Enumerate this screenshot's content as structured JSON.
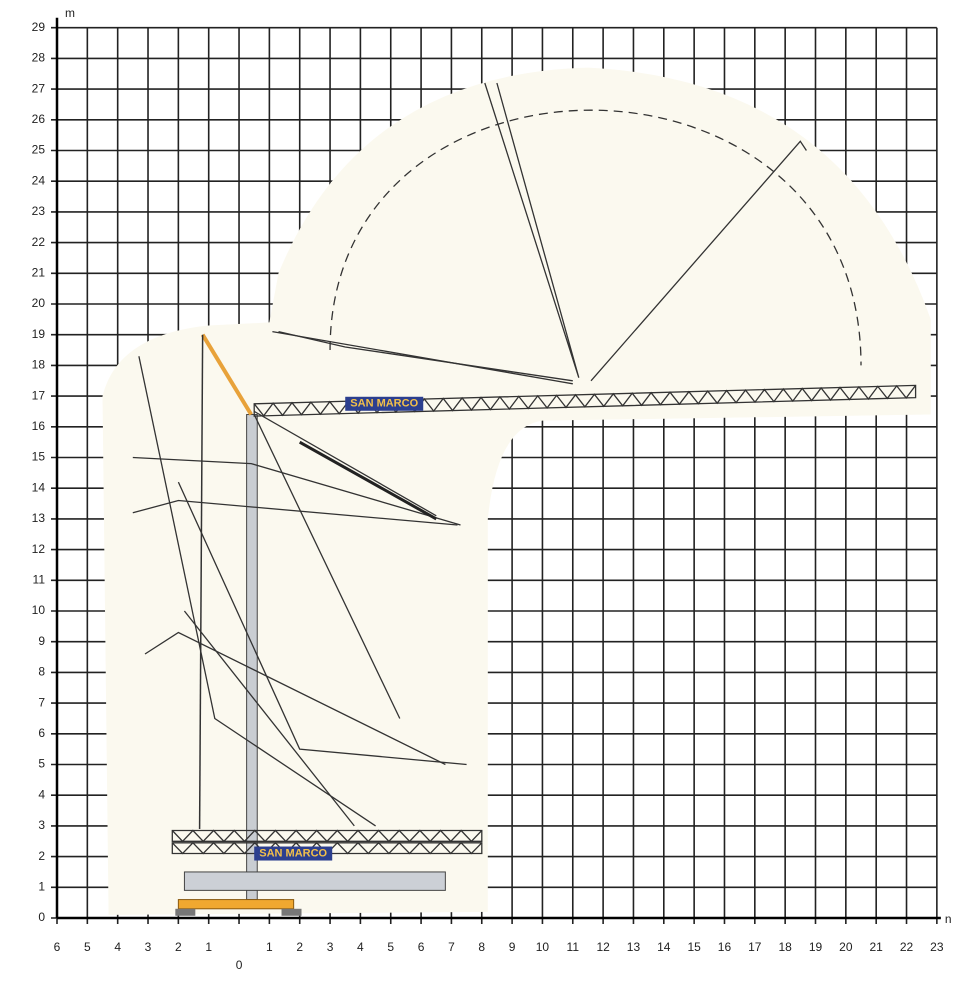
{
  "axes": {
    "y_unit": "m",
    "x_unit": "n",
    "y_labels": [
      "0",
      "1",
      "2",
      "3",
      "4",
      "5",
      "6",
      "7",
      "8",
      "9",
      "10",
      "11",
      "12",
      "13",
      "14",
      "15",
      "16",
      "17",
      "18",
      "19",
      "20",
      "21",
      "22",
      "23",
      "24",
      "25",
      "26",
      "27",
      "28",
      "29"
    ],
    "x_labels_left": [
      "6",
      "5",
      "4",
      "3",
      "2",
      "1"
    ],
    "x_origin": "0",
    "x_labels_right": [
      "1",
      "2",
      "3",
      "4",
      "5",
      "6",
      "7",
      "8",
      "9",
      "10",
      "11",
      "12",
      "13",
      "14",
      "15",
      "16",
      "17",
      "18",
      "19",
      "20",
      "21",
      "22",
      "23"
    ]
  },
  "labels": [
    "SAN MARCO",
    "SAN MARCO"
  ]
}
